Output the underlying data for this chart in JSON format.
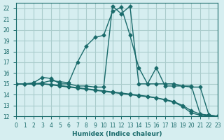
{
  "xlabel": "Humidex (Indice chaleur)",
  "background_color": "#d6eef0",
  "grid_color": "#aacccc",
  "line_color": "#1a6b6b",
  "xlim": [
    0,
    23
  ],
  "ylim": [
    12,
    22.5
  ],
  "xticks": [
    0,
    1,
    2,
    3,
    4,
    5,
    6,
    7,
    8,
    9,
    10,
    11,
    12,
    13,
    14,
    15,
    16,
    17,
    18,
    19,
    20,
    21,
    22,
    23
  ],
  "yticks": [
    12,
    13,
    14,
    15,
    16,
    17,
    18,
    19,
    20,
    21,
    22
  ],
  "line1_x": [
    0,
    1,
    2,
    3,
    4,
    5,
    6,
    7,
    8,
    9,
    10,
    11,
    12,
    13,
    14,
    15,
    16,
    17,
    18,
    19,
    20,
    21,
    22,
    23
  ],
  "line1_y": [
    15,
    15,
    15.1,
    15.6,
    15.5,
    15.0,
    15.0,
    14.8,
    14.8,
    14.7,
    14.7,
    22.2,
    21.5,
    22.2,
    15.0,
    15.0,
    15.0,
    15.0,
    15.0,
    14.8,
    14.8,
    12.2,
    12.1,
    12.0
  ],
  "line2_x": [
    0,
    1,
    2,
    3,
    4,
    5,
    6,
    7,
    8,
    9,
    10,
    11,
    12,
    13,
    14,
    15,
    16,
    17,
    18,
    19,
    20,
    21,
    22,
    23
  ],
  "line2_y": [
    15,
    15,
    15,
    15.1,
    15.3,
    15.2,
    15.1,
    17.0,
    18.5,
    19.3,
    19.5,
    21.7,
    22.1,
    19.5,
    16.5,
    15.0,
    16.5,
    14.8,
    14.8,
    14.8,
    14.7,
    14.7,
    12.1,
    12.0
  ],
  "line3_x": [
    0,
    1,
    2,
    3,
    4,
    5,
    6,
    7,
    8,
    9,
    10,
    11,
    12,
    13,
    14,
    15,
    16,
    17,
    18,
    19,
    20,
    21,
    22,
    23
  ],
  "line3_y": [
    15,
    15,
    15,
    15,
    14.95,
    14.85,
    14.75,
    14.65,
    14.55,
    14.45,
    14.35,
    14.25,
    14.15,
    14.05,
    13.95,
    13.85,
    13.7,
    13.55,
    13.35,
    13.0,
    12.5,
    12.2,
    12.05,
    12.0
  ],
  "line4_x": [
    0,
    1,
    2,
    3,
    4,
    5,
    6,
    7,
    8,
    9,
    10,
    11,
    12,
    13,
    14,
    15,
    16,
    17,
    18,
    19,
    20,
    21,
    22,
    23
  ],
  "line4_y": [
    15,
    15,
    15,
    15,
    14.9,
    14.8,
    14.7,
    14.6,
    14.5,
    14.4,
    14.3,
    14.2,
    14.1,
    14.0,
    13.9,
    13.8,
    13.7,
    13.5,
    13.3,
    12.9,
    12.3,
    12.1,
    12.0,
    12.0
  ]
}
